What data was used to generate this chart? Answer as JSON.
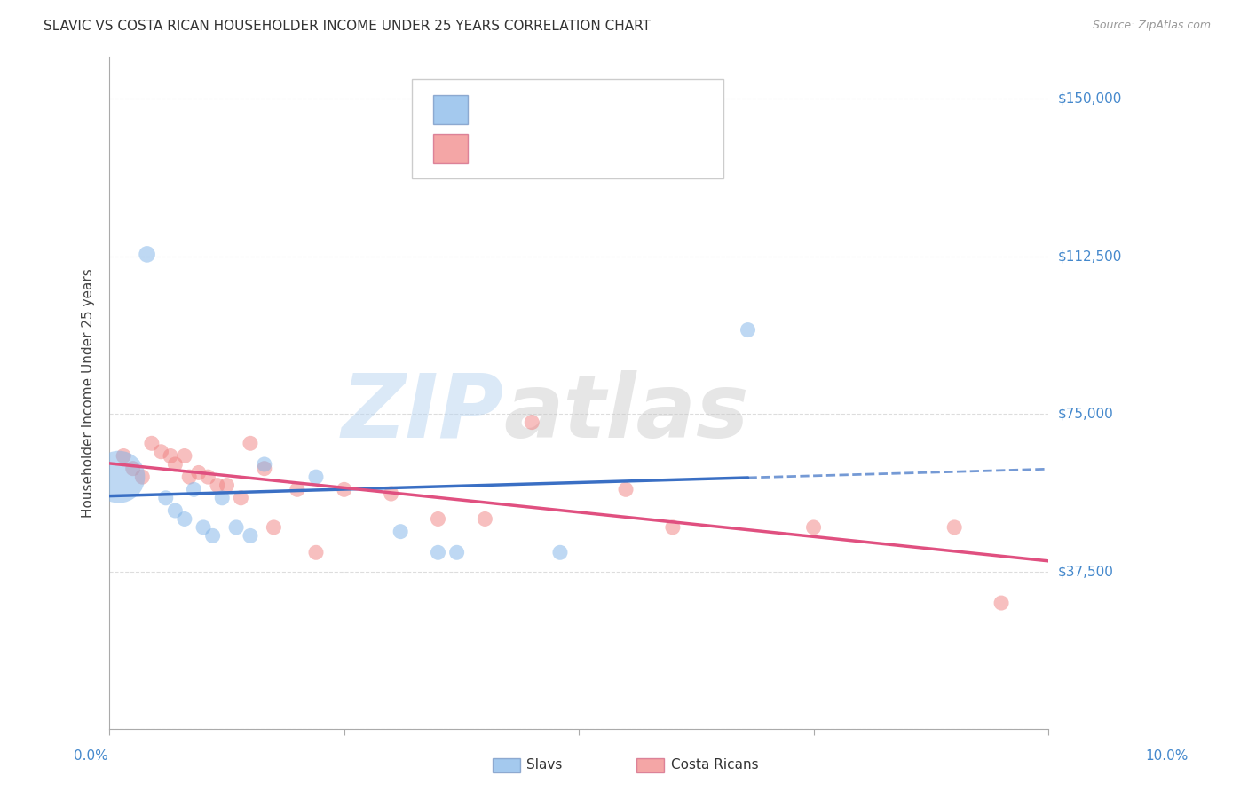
{
  "title": "SLAVIC VS COSTA RICAN HOUSEHOLDER INCOME UNDER 25 YEARS CORRELATION CHART",
  "source": "Source: ZipAtlas.com",
  "ylabel": "Householder Income Under 25 years",
  "yticks": [
    0,
    37500,
    75000,
    112500,
    150000
  ],
  "ytick_labels": [
    "",
    "$37,500",
    "$75,000",
    "$112,500",
    "$150,000"
  ],
  "xmin": 0.0,
  "xmax": 10.0,
  "ymin": 0,
  "ymax": 160000,
  "slavs_color": "#7EB3E8",
  "cr_color": "#F08080",
  "slavs_line_color": "#3A6FC4",
  "cr_line_color": "#E05080",
  "slavs_x": [
    0.1,
    0.4,
    0.6,
    0.7,
    0.8,
    0.9,
    1.0,
    1.1,
    1.2,
    1.35,
    1.5,
    1.65,
    2.2,
    3.1,
    3.5,
    3.7,
    4.8,
    6.8
  ],
  "slavs_y": [
    60000,
    113000,
    55000,
    52000,
    50000,
    57000,
    48000,
    46000,
    55000,
    48000,
    46000,
    63000,
    60000,
    47000,
    42000,
    42000,
    42000,
    95000
  ],
  "slavs_size": [
    1200,
    120,
    100,
    100,
    100,
    100,
    100,
    100,
    100,
    100,
    100,
    100,
    100,
    100,
    100,
    100,
    100,
    100
  ],
  "cr_x": [
    0.15,
    0.25,
    0.35,
    0.45,
    0.55,
    0.65,
    0.7,
    0.8,
    0.85,
    0.95,
    1.05,
    1.15,
    1.25,
    1.4,
    1.5,
    1.65,
    1.75,
    2.0,
    2.2,
    2.5,
    3.0,
    3.5,
    4.0,
    4.5,
    5.5,
    6.0,
    7.5,
    9.0,
    9.5
  ],
  "cr_y": [
    65000,
    62000,
    60000,
    68000,
    66000,
    65000,
    63000,
    65000,
    60000,
    61000,
    60000,
    58000,
    58000,
    55000,
    68000,
    62000,
    48000,
    57000,
    42000,
    57000,
    56000,
    50000,
    50000,
    73000,
    57000,
    48000,
    48000,
    48000,
    30000
  ],
  "cr_size": [
    100,
    100,
    100,
    100,
    100,
    100,
    100,
    100,
    100,
    100,
    100,
    100,
    100,
    100,
    100,
    100,
    100,
    100,
    100,
    100,
    100,
    100,
    100,
    100,
    100,
    100,
    100,
    100,
    100
  ],
  "watermark_zip": "ZIP",
  "watermark_atlas": "atlas",
  "background_color": "#FFFFFF",
  "grid_color": "#DDDDDD"
}
